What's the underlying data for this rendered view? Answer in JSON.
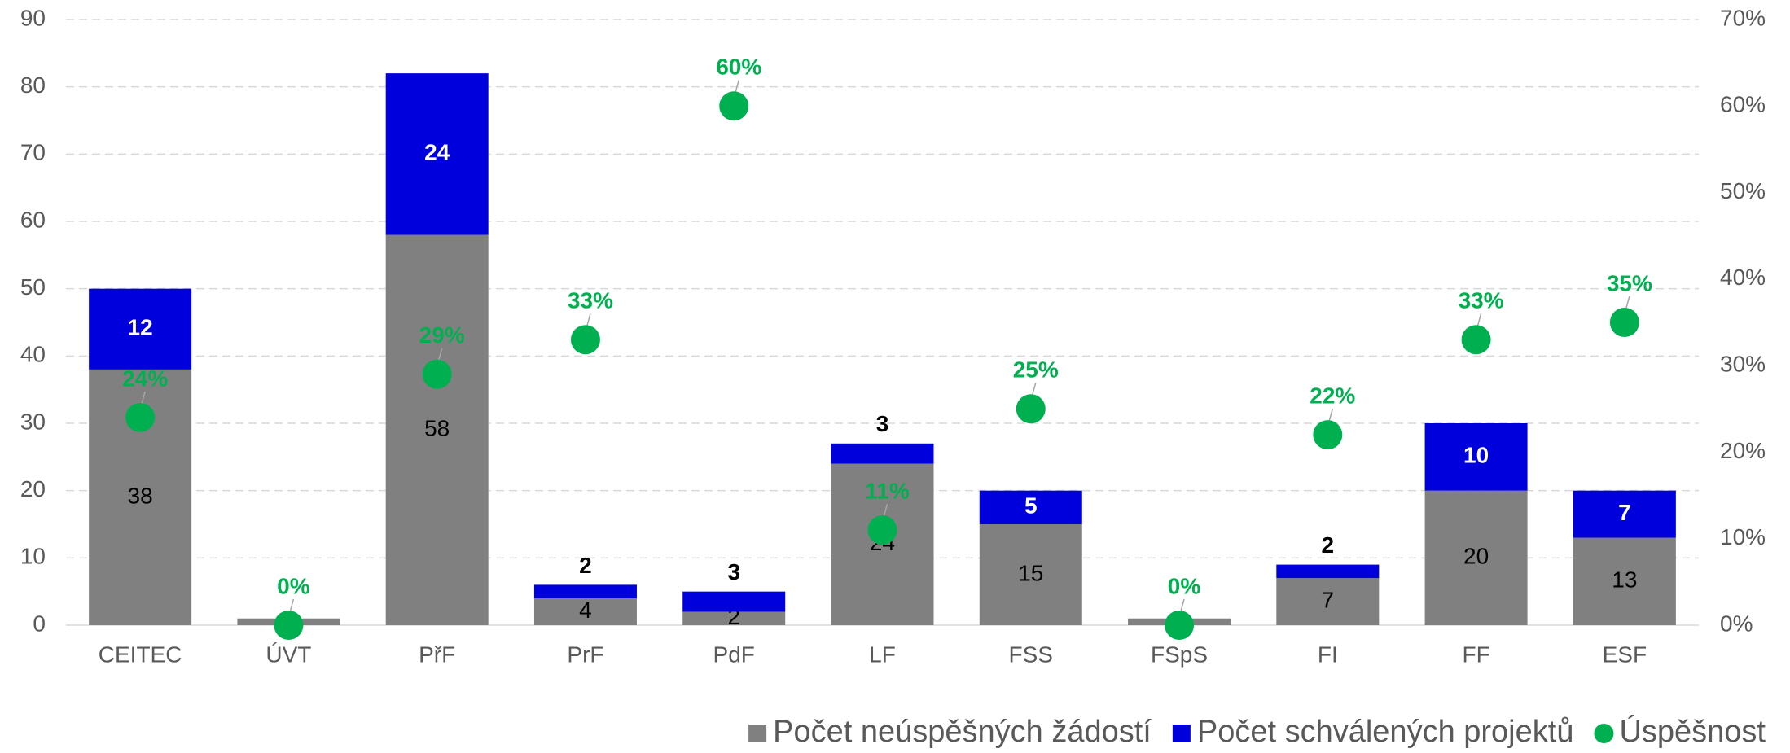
{
  "chart_data": {
    "type": "bar",
    "stacked": true,
    "categories": [
      "CEITEC",
      "ÚVT",
      "PřF",
      "PrF",
      "PdF",
      "LF",
      "FSS",
      "FSpS",
      "FI",
      "FF",
      "ESF"
    ],
    "series": [
      {
        "name": "Počet neúspěšných žádostí",
        "color": "#808080",
        "type": "bar",
        "values": [
          38,
          1,
          58,
          4,
          2,
          24,
          15,
          1,
          7,
          20,
          13
        ]
      },
      {
        "name": "Počet schválených projektů",
        "color": "#0000dd",
        "type": "bar",
        "values": [
          12,
          0,
          24,
          2,
          3,
          3,
          5,
          0,
          2,
          10,
          7
        ]
      },
      {
        "name": "Úspěšnost",
        "color": "#00b050",
        "type": "scatter",
        "axis": "y2",
        "values": [
          24,
          0,
          29,
          33,
          60,
          11,
          25,
          0,
          22,
          33,
          35
        ],
        "value_labels": [
          "24%",
          "0%",
          "29%",
          "33%",
          "60%",
          "11%",
          "25%",
          "0%",
          "22%",
          "33%",
          "35%"
        ]
      }
    ],
    "ylim": [
      0,
      90
    ],
    "yticks": [
      0,
      10,
      20,
      30,
      40,
      50,
      60,
      70,
      80,
      90
    ],
    "y2lim": [
      0,
      70
    ],
    "y2ticks": [
      {
        "value": 0,
        "label": "0%"
      },
      {
        "value": 10,
        "label": "10%"
      },
      {
        "value": 20,
        "label": "20%"
      },
      {
        "value": 30,
        "label": "30%"
      },
      {
        "value": 40,
        "label": "40%"
      },
      {
        "value": 50,
        "label": "50%"
      },
      {
        "value": 60,
        "label": "60%"
      },
      {
        "value": 70,
        "label": "70%"
      }
    ],
    "grid": true,
    "legend": "bottom-right"
  }
}
